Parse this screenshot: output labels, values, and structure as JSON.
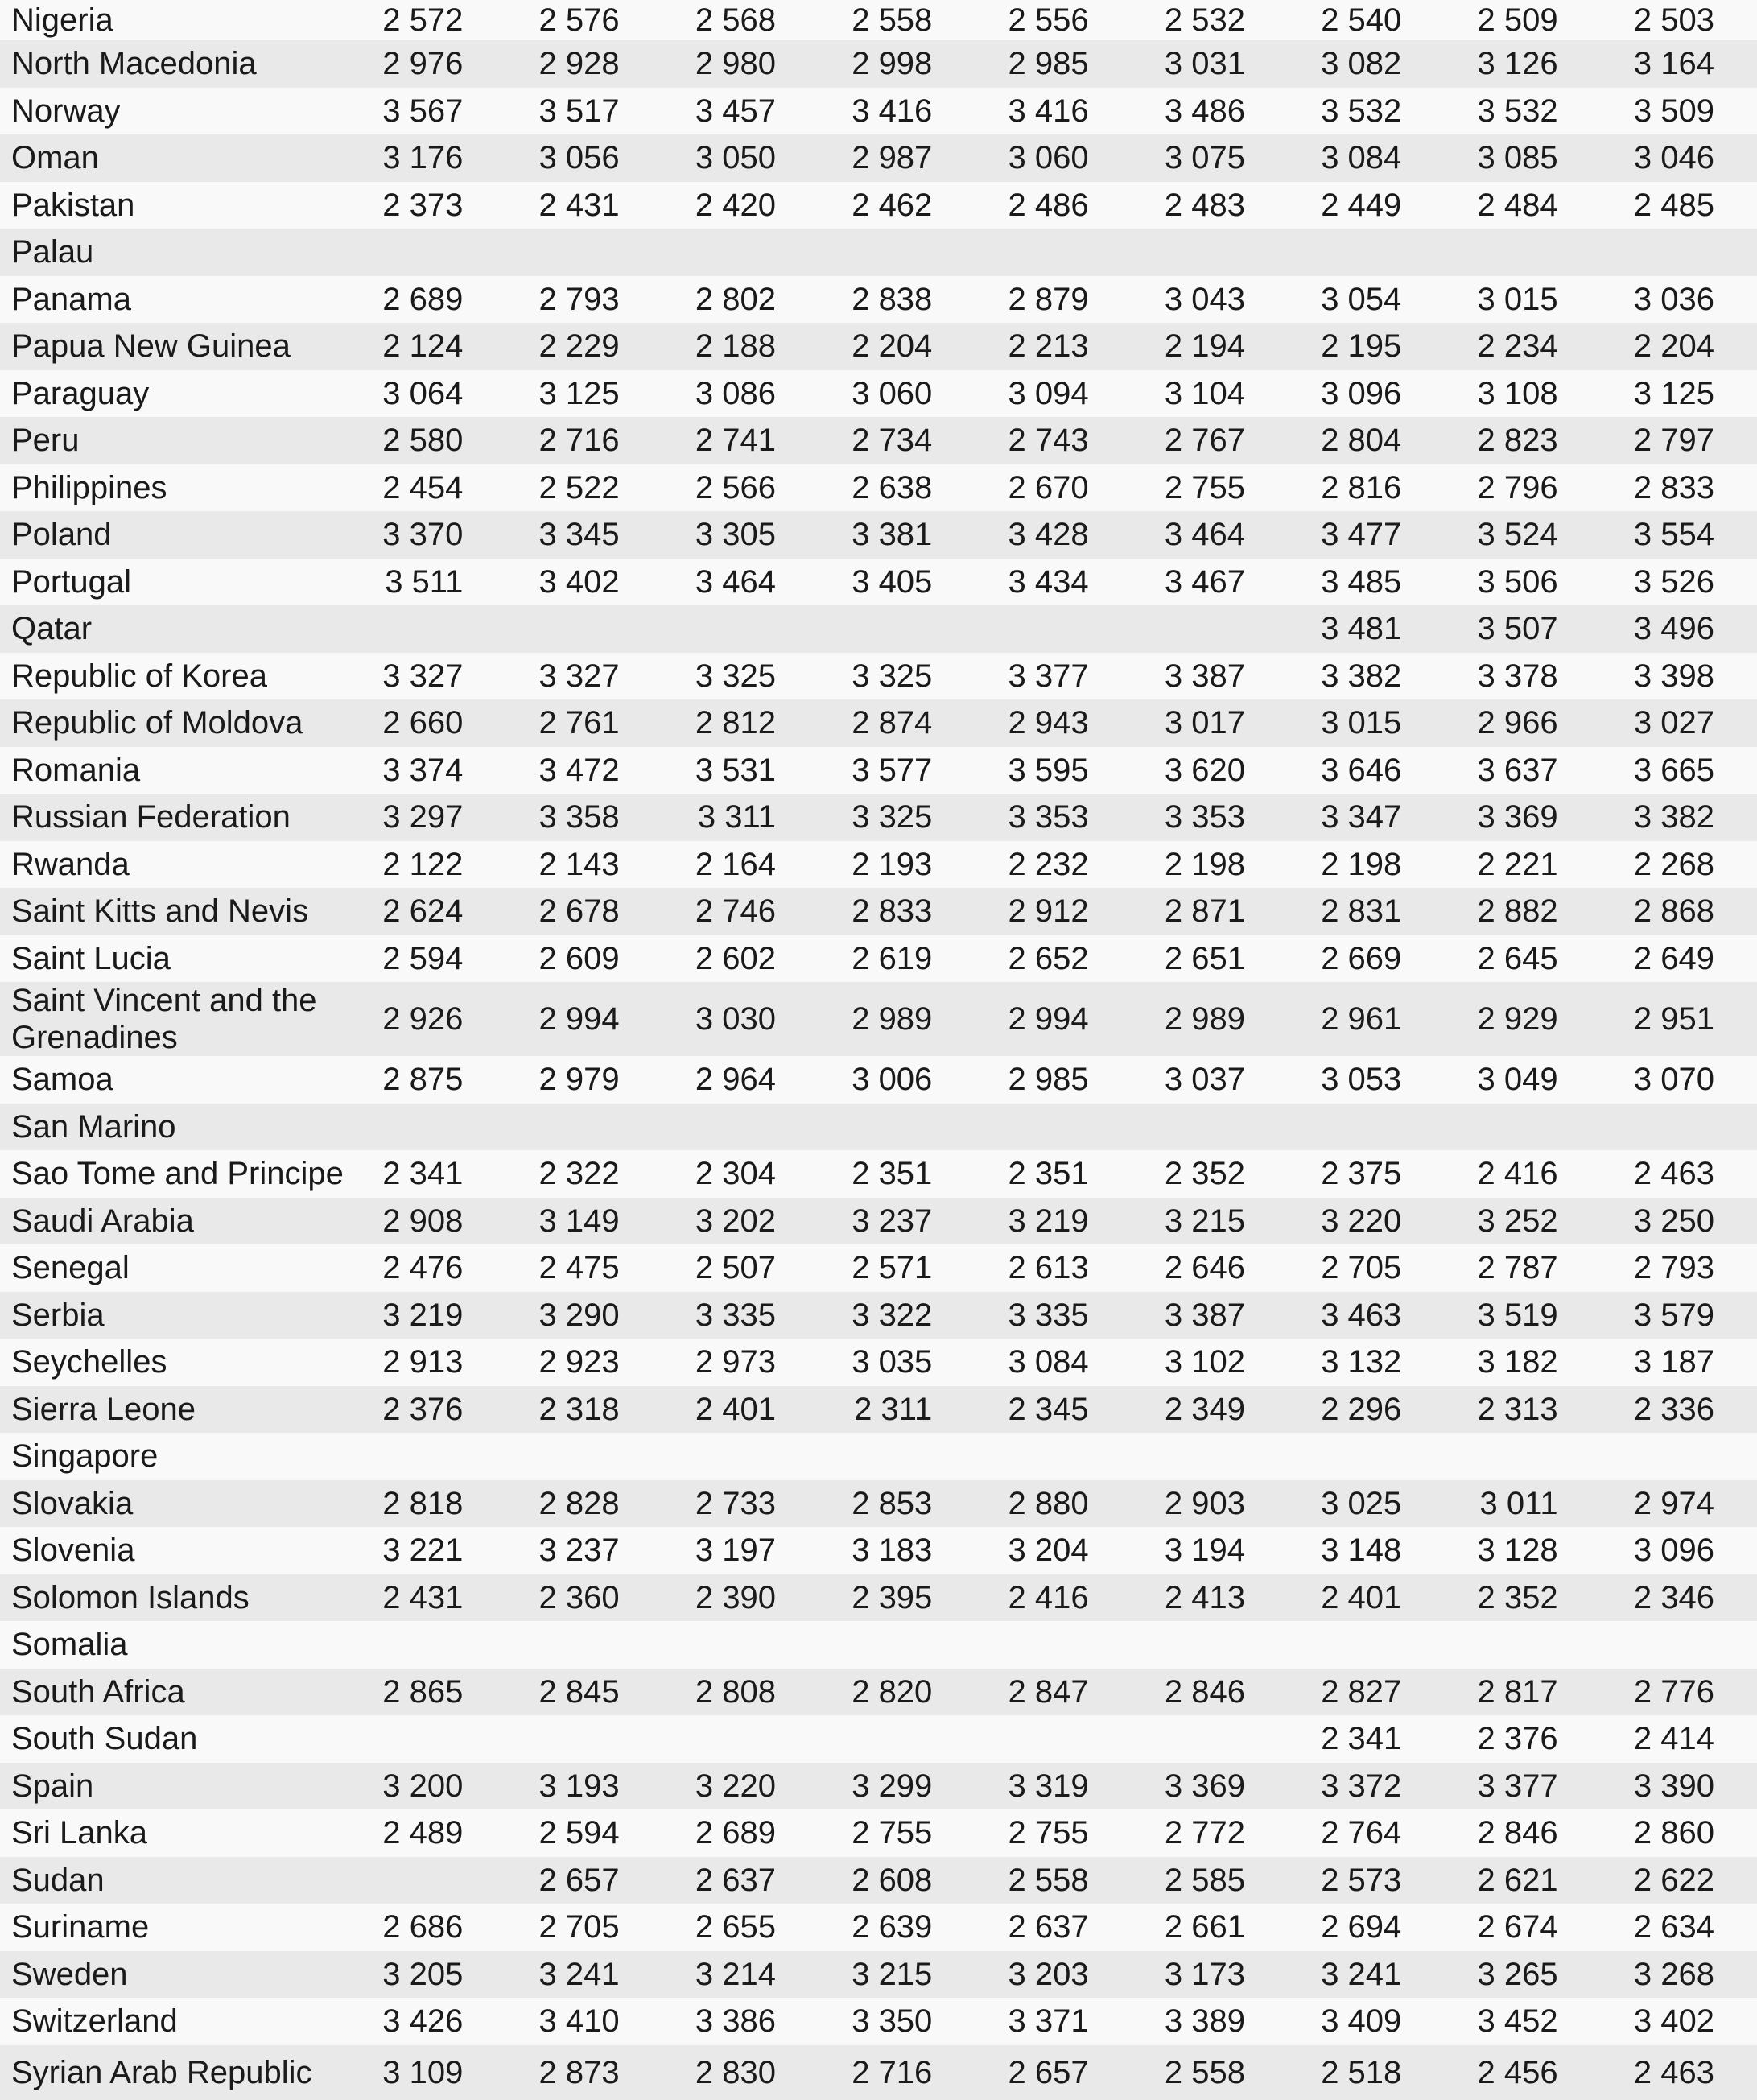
{
  "styles": {
    "row_odd_color": "#f9f9f9",
    "row_even_color": "#e9e9e9",
    "text_color": "#1a1a1a"
  },
  "chart_data": {
    "type": "table",
    "title": "",
    "column_headers_visible": false,
    "value_columns": 9,
    "rows": [
      {
        "label": "Nigeria",
        "values": [
          "2 572",
          "2 576",
          "2 568",
          "2 558",
          "2 556",
          "2 532",
          "2 540",
          "2 509",
          "2 503"
        ]
      },
      {
        "label": "North Macedonia",
        "values": [
          "2 976",
          "2 928",
          "2 980",
          "2 998",
          "2 985",
          "3 031",
          "3 082",
          "3 126",
          "3 164"
        ]
      },
      {
        "label": "Norway",
        "values": [
          "3 567",
          "3 517",
          "3 457",
          "3 416",
          "3 416",
          "3 486",
          "3 532",
          "3 532",
          "3 509"
        ]
      },
      {
        "label": "Oman",
        "values": [
          "3 176",
          "3 056",
          "3 050",
          "2 987",
          "3 060",
          "3 075",
          "3 084",
          "3 085",
          "3 046"
        ]
      },
      {
        "label": "Pakistan",
        "values": [
          "2 373",
          "2 431",
          "2 420",
          "2 462",
          "2 486",
          "2 483",
          "2 449",
          "2 484",
          "2 485"
        ]
      },
      {
        "label": "Palau",
        "values": [
          "",
          "",
          "",
          "",
          "",
          "",
          "",
          "",
          ""
        ]
      },
      {
        "label": "Panama",
        "values": [
          "2 689",
          "2 793",
          "2 802",
          "2 838",
          "2 879",
          "3 043",
          "3 054",
          "3 015",
          "3 036"
        ]
      },
      {
        "label": "Papua New Guinea",
        "values": [
          "2 124",
          "2 229",
          "2 188",
          "2 204",
          "2 213",
          "2 194",
          "2 195",
          "2 234",
          "2 204"
        ]
      },
      {
        "label": "Paraguay",
        "values": [
          "3 064",
          "3 125",
          "3 086",
          "3 060",
          "3 094",
          "3 104",
          "3 096",
          "3 108",
          "3 125"
        ]
      },
      {
        "label": "Peru",
        "values": [
          "2 580",
          "2 716",
          "2 741",
          "2 734",
          "2 743",
          "2 767",
          "2 804",
          "2 823",
          "2 797"
        ]
      },
      {
        "label": "Philippines",
        "values": [
          "2 454",
          "2 522",
          "2 566",
          "2 638",
          "2 670",
          "2 755",
          "2 816",
          "2 796",
          "2 833"
        ]
      },
      {
        "label": "Poland",
        "values": [
          "3 370",
          "3 345",
          "3 305",
          "3 381",
          "3 428",
          "3 464",
          "3 477",
          "3 524",
          "3 554"
        ]
      },
      {
        "label": "Portugal",
        "values": [
          "3 511",
          "3 402",
          "3 464",
          "3 405",
          "3 434",
          "3 467",
          "3 485",
          "3 506",
          "3 526"
        ]
      },
      {
        "label": "Qatar",
        "values": [
          "",
          "",
          "",
          "",
          "",
          "",
          "3 481",
          "3 507",
          "3 496"
        ]
      },
      {
        "label": "Republic of Korea",
        "values": [
          "3 327",
          "3 327",
          "3 325",
          "3 325",
          "3 377",
          "3 387",
          "3 382",
          "3 378",
          "3 398"
        ]
      },
      {
        "label": "Republic of Moldova",
        "values": [
          "2 660",
          "2 761",
          "2 812",
          "2 874",
          "2 943",
          "3 017",
          "3 015",
          "2 966",
          "3 027"
        ]
      },
      {
        "label": "Romania",
        "values": [
          "3 374",
          "3 472",
          "3 531",
          "3 577",
          "3 595",
          "3 620",
          "3 646",
          "3 637",
          "3 665"
        ]
      },
      {
        "label": "Russian Federation",
        "values": [
          "3 297",
          "3 358",
          "3 311",
          "3 325",
          "3 353",
          "3 353",
          "3 347",
          "3 369",
          "3 382"
        ]
      },
      {
        "label": "Rwanda",
        "values": [
          "2 122",
          "2 143",
          "2 164",
          "2 193",
          "2 232",
          "2 198",
          "2 198",
          "2 221",
          "2 268"
        ]
      },
      {
        "label": "Saint Kitts and Nevis",
        "values": [
          "2 624",
          "2 678",
          "2 746",
          "2 833",
          "2 912",
          "2 871",
          "2 831",
          "2 882",
          "2 868"
        ]
      },
      {
        "label": "Saint Lucia",
        "values": [
          "2 594",
          "2 609",
          "2 602",
          "2 619",
          "2 652",
          "2 651",
          "2 669",
          "2 645",
          "2 649"
        ]
      },
      {
        "label": "Saint Vincent and the Grenadines",
        "values": [
          "2 926",
          "2 994",
          "3 030",
          "2 989",
          "2 994",
          "2 989",
          "2 961",
          "2 929",
          "2 951"
        ]
      },
      {
        "label": "Samoa",
        "values": [
          "2 875",
          "2 979",
          "2 964",
          "3 006",
          "2 985",
          "3 037",
          "3 053",
          "3 049",
          "3 070"
        ]
      },
      {
        "label": "San Marino",
        "values": [
          "",
          "",
          "",
          "",
          "",
          "",
          "",
          "",
          ""
        ]
      },
      {
        "label": "Sao Tome and Principe",
        "values": [
          "2 341",
          "2 322",
          "2 304",
          "2 351",
          "2 351",
          "2 352",
          "2 375",
          "2 416",
          "2 463"
        ]
      },
      {
        "label": "Saudi Arabia",
        "values": [
          "2 908",
          "3 149",
          "3 202",
          "3 237",
          "3 219",
          "3 215",
          "3 220",
          "3 252",
          "3 250"
        ]
      },
      {
        "label": "Senegal",
        "values": [
          "2 476",
          "2 475",
          "2 507",
          "2 571",
          "2 613",
          "2 646",
          "2 705",
          "2 787",
          "2 793"
        ]
      },
      {
        "label": "Serbia",
        "values": [
          "3 219",
          "3 290",
          "3 335",
          "3 322",
          "3 335",
          "3 387",
          "3 463",
          "3 519",
          "3 579"
        ]
      },
      {
        "label": "Seychelles",
        "values": [
          "2 913",
          "2 923",
          "2 973",
          "3 035",
          "3 084",
          "3 102",
          "3 132",
          "3 182",
          "3 187"
        ]
      },
      {
        "label": "Sierra Leone",
        "values": [
          "2 376",
          "2 318",
          "2 401",
          "2 311",
          "2 345",
          "2 349",
          "2 296",
          "2 313",
          "2 336"
        ]
      },
      {
        "label": "Singapore",
        "values": [
          "",
          "",
          "",
          "",
          "",
          "",
          "",
          "",
          ""
        ]
      },
      {
        "label": "Slovakia",
        "values": [
          "2 818",
          "2 828",
          "2 733",
          "2 853",
          "2 880",
          "2 903",
          "3 025",
          "3 011",
          "2 974"
        ]
      },
      {
        "label": "Slovenia",
        "values": [
          "3 221",
          "3 237",
          "3 197",
          "3 183",
          "3 204",
          "3 194",
          "3 148",
          "3 128",
          "3 096"
        ]
      },
      {
        "label": "Solomon Islands",
        "values": [
          "2 431",
          "2 360",
          "2 390",
          "2 395",
          "2 416",
          "2 413",
          "2 401",
          "2 352",
          "2 346"
        ]
      },
      {
        "label": "Somalia",
        "values": [
          "",
          "",
          "",
          "",
          "",
          "",
          "",
          "",
          ""
        ]
      },
      {
        "label": "South Africa",
        "values": [
          "2 865",
          "2 845",
          "2 808",
          "2 820",
          "2 847",
          "2 846",
          "2 827",
          "2 817",
          "2 776"
        ]
      },
      {
        "label": "South Sudan",
        "values": [
          "",
          "",
          "",
          "",
          "",
          "",
          "2 341",
          "2 376",
          "2 414"
        ]
      },
      {
        "label": "Spain",
        "values": [
          "3 200",
          "3 193",
          "3 220",
          "3 299",
          "3 319",
          "3 369",
          "3 372",
          "3 377",
          "3 390"
        ]
      },
      {
        "label": "Sri Lanka",
        "values": [
          "2 489",
          "2 594",
          "2 689",
          "2 755",
          "2 755",
          "2 772",
          "2 764",
          "2 846",
          "2 860"
        ]
      },
      {
        "label": "Sudan",
        "values": [
          "",
          "2 657",
          "2 637",
          "2 608",
          "2 558",
          "2 585",
          "2 573",
          "2 621",
          "2 622"
        ]
      },
      {
        "label": "Suriname",
        "values": [
          "2 686",
          "2 705",
          "2 655",
          "2 639",
          "2 637",
          "2 661",
          "2 694",
          "2 674",
          "2 634"
        ]
      },
      {
        "label": "Sweden",
        "values": [
          "3 205",
          "3 241",
          "3 214",
          "3 215",
          "3 203",
          "3 173",
          "3 241",
          "3 265",
          "3 268"
        ]
      },
      {
        "label": "Switzerland",
        "values": [
          "3 426",
          "3 410",
          "3 386",
          "3 350",
          "3 371",
          "3 389",
          "3 409",
          "3 452",
          "3 402"
        ]
      },
      {
        "label": "Syrian Arab Republic",
        "values": [
          "3 109",
          "2 873",
          "2 830",
          "2 716",
          "2 657",
          "2 558",
          "2 518",
          "2 456",
          "2 463"
        ]
      }
    ]
  }
}
